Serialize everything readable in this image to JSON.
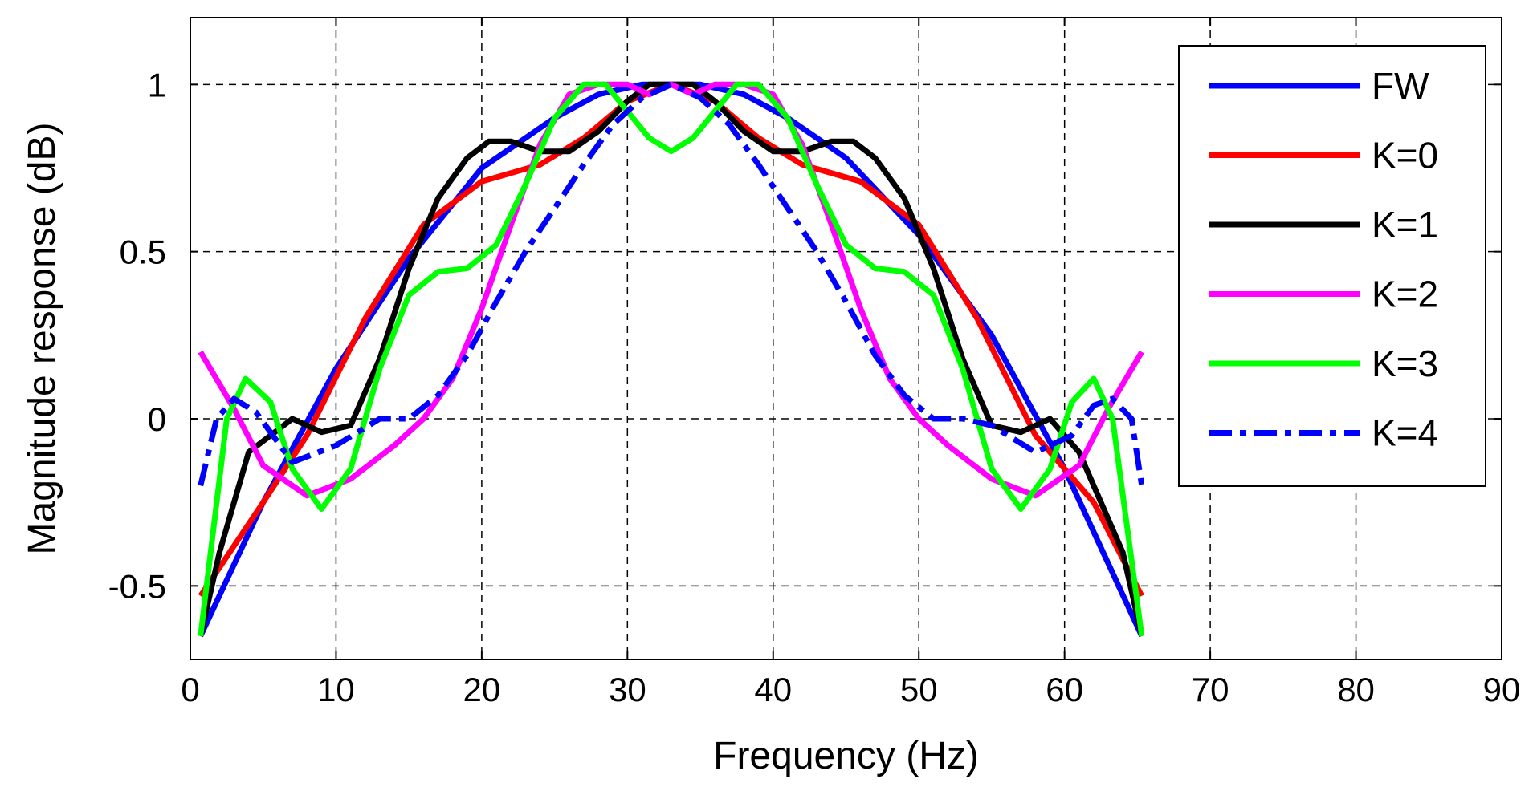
{
  "chart_data": {
    "type": "line",
    "title": "",
    "xlabel": "Frequency (Hz)",
    "ylabel": "Magnitude response (dB)",
    "xlim": [
      0,
      90
    ],
    "ylim": [
      -0.72,
      1.2
    ],
    "xticks": [
      0,
      10,
      20,
      30,
      40,
      50,
      60,
      70,
      80,
      90
    ],
    "xtick_labels": [
      "0",
      "10",
      "20",
      "30",
      "40",
      "50",
      "60",
      "70",
      "80",
      "90"
    ],
    "yticks": [
      -0.5,
      0,
      0.5,
      1
    ],
    "ytick_labels": [
      "-0.5",
      "0",
      "0.5",
      "1"
    ],
    "grid": true,
    "legend_position": "top-right",
    "series": [
      {
        "name": "FW",
        "color": "#0000ff",
        "style": "solid",
        "x": [
          0.7,
          5,
          10,
          15,
          20,
          25,
          28,
          31,
          33,
          35,
          38,
          41,
          45,
          50,
          55,
          60,
          65.3
        ],
        "y": [
          -0.65,
          -0.25,
          0.15,
          0.48,
          0.75,
          0.9,
          0.97,
          1.0,
          1.0,
          1.0,
          0.97,
          0.9,
          0.78,
          0.55,
          0.25,
          -0.15,
          -0.65
        ]
      },
      {
        "name": "K=0",
        "color": "#ff0000",
        "style": "solid",
        "x": [
          0.7,
          5,
          8,
          12,
          16,
          20,
          24,
          27,
          30,
          33,
          36,
          39,
          42,
          46,
          50,
          54,
          58,
          62,
          65.3
        ],
        "y": [
          -0.53,
          -0.25,
          -0.05,
          0.3,
          0.58,
          0.71,
          0.76,
          0.84,
          0.95,
          1.0,
          0.95,
          0.84,
          0.76,
          0.71,
          0.58,
          0.3,
          -0.05,
          -0.25,
          -0.53
        ]
      },
      {
        "name": "K=1",
        "color": "#000000",
        "style": "solid",
        "x": [
          0.7,
          2,
          4,
          7,
          9,
          11,
          13,
          15,
          17,
          19,
          20.5,
          22,
          24,
          26,
          28,
          30,
          31.5,
          33,
          34.5,
          36,
          38,
          40,
          42,
          44,
          45.5,
          47,
          49,
          51,
          53,
          55,
          57,
          59,
          61,
          62.5,
          64,
          65.3
        ],
        "y": [
          -0.65,
          -0.4,
          -0.1,
          0.0,
          -0.04,
          -0.02,
          0.18,
          0.45,
          0.66,
          0.78,
          0.83,
          0.83,
          0.8,
          0.8,
          0.86,
          0.95,
          1.0,
          1.0,
          1.0,
          0.95,
          0.86,
          0.8,
          0.8,
          0.83,
          0.83,
          0.78,
          0.66,
          0.45,
          0.18,
          -0.02,
          -0.04,
          0.0,
          -0.1,
          -0.25,
          -0.4,
          -0.65
        ]
      },
      {
        "name": "K=2",
        "color": "#ff00ff",
        "style": "solid",
        "x": [
          0.7,
          3,
          5,
          8,
          11,
          14,
          16,
          18,
          20,
          22,
          24,
          26,
          28,
          30,
          31.5,
          33,
          34.5,
          36,
          38,
          40,
          42,
          44,
          46,
          48,
          50,
          52,
          55,
          58,
          61,
          63,
          65.3
        ],
        "y": [
          0.2,
          0.03,
          -0.14,
          -0.23,
          -0.18,
          -0.08,
          0.0,
          0.12,
          0.33,
          0.58,
          0.82,
          0.97,
          1.0,
          1.0,
          0.97,
          1.0,
          0.97,
          1.0,
          1.0,
          0.97,
          0.82,
          0.58,
          0.33,
          0.12,
          0.0,
          -0.08,
          -0.18,
          -0.23,
          -0.14,
          0.03,
          0.2
        ]
      },
      {
        "name": "K=3",
        "color": "#00ff00",
        "style": "solid",
        "x": [
          0.7,
          2.5,
          3.8,
          5.5,
          7,
          9,
          11,
          13,
          15,
          17,
          19,
          21,
          23,
          25,
          27,
          28.5,
          30,
          31.5,
          33,
          34.5,
          36,
          37.5,
          39,
          41,
          43,
          45,
          47,
          49,
          51,
          53,
          55,
          57,
          59,
          60.5,
          62,
          63.3,
          65.3
        ],
        "y": [
          -0.65,
          0.0,
          0.12,
          0.05,
          -0.15,
          -0.27,
          -0.15,
          0.15,
          0.37,
          0.44,
          0.45,
          0.52,
          0.7,
          0.9,
          1.0,
          1.0,
          0.92,
          0.84,
          0.8,
          0.84,
          0.92,
          1.0,
          1.0,
          0.9,
          0.7,
          0.52,
          0.45,
          0.44,
          0.37,
          0.15,
          -0.15,
          -0.27,
          -0.15,
          0.05,
          0.12,
          0.0,
          -0.65
        ]
      },
      {
        "name": "K=4",
        "color": "#0000ff",
        "style": "dashdot",
        "x": [
          0.7,
          1.8,
          3,
          4.5,
          7,
          10,
          13,
          15,
          17,
          19,
          21,
          23,
          25,
          27,
          29,
          31,
          33,
          35,
          37,
          39,
          41,
          43,
          45,
          47,
          49,
          51,
          53,
          55,
          58,
          60.5,
          62,
          63.3,
          64.6,
          65.3
        ],
        "y": [
          -0.2,
          0.0,
          0.06,
          0.02,
          -0.13,
          -0.08,
          0.0,
          0.0,
          0.07,
          0.19,
          0.35,
          0.5,
          0.63,
          0.76,
          0.88,
          0.96,
          1.0,
          0.96,
          0.88,
          0.76,
          0.63,
          0.5,
          0.35,
          0.19,
          0.07,
          0.0,
          0.0,
          -0.02,
          -0.1,
          -0.05,
          0.04,
          0.06,
          0.0,
          -0.2
        ]
      }
    ]
  }
}
